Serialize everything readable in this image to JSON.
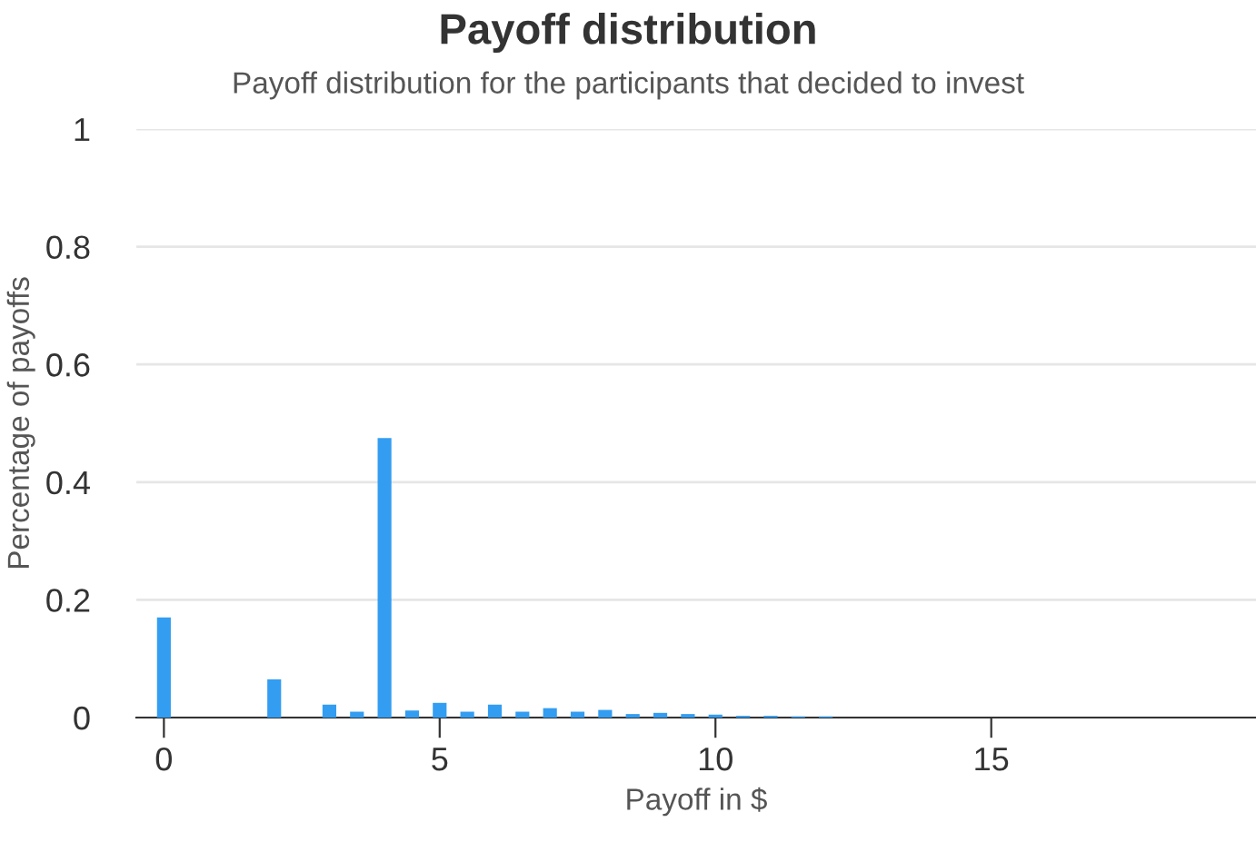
{
  "chart_data": {
    "type": "bar",
    "title": "Payoff distribution",
    "subtitle": "Payoff distribution for the participants that decided to invest",
    "xlabel": "Payoff in $",
    "ylabel": "Percentage of payoffs",
    "x": [
      0,
      2,
      3,
      3.5,
      4,
      4.5,
      5,
      5.5,
      6,
      6.5,
      7,
      7.5,
      8,
      8.5,
      9,
      9.5,
      10,
      10.5,
      11,
      11.5,
      12
    ],
    "values": [
      0.17,
      0.065,
      0.022,
      0.01,
      0.475,
      0.012,
      0.025,
      0.01,
      0.022,
      0.01,
      0.016,
      0.01,
      0.013,
      0.006,
      0.008,
      0.006,
      0.005,
      0.003,
      0.003,
      0.002,
      0.002
    ],
    "color": "#339df2",
    "xlim": [
      -0.5,
      19.8
    ],
    "xticks": [
      0,
      5,
      10,
      15
    ],
    "ylim": [
      0,
      1
    ],
    "yticks": [
      0,
      0.2,
      0.4,
      0.6,
      0.8,
      1
    ],
    "grid": "y",
    "legend": false
  }
}
